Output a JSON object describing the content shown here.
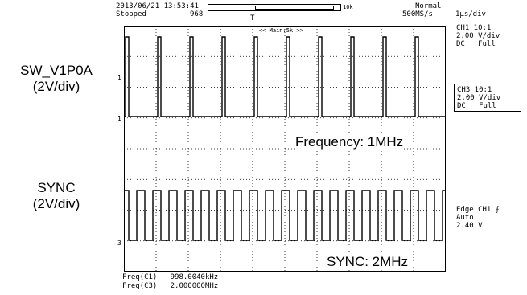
{
  "header": {
    "datetime": "2013/06/21 13:53:41",
    "status": "Stopped",
    "count": "968",
    "zoom_box": "10k",
    "mode": "Normal",
    "sample_rate": "500MS/s",
    "timebase": "1μs/div"
  },
  "plot": {
    "main_marker": "<< Main:5k >>",
    "freq_annotation": "Frequency: 1MHz",
    "sync_annotation": "SYNC: 2MHz",
    "trigger_marker": "T",
    "ch1_marker": "1",
    "ch3_marker": "3"
  },
  "left_labels": {
    "sw_name": "SW_V1P0A",
    "sw_scale": "(2V/div)",
    "sync_name": "SYNC",
    "sync_scale": "(2V/div)"
  },
  "channels": {
    "ch1": {
      "line1": "CH1 10:1",
      "line2": "2.00 V/div",
      "line3": "DC   Full"
    },
    "ch3": {
      "line1": "CH3 10:1",
      "line2": "2.00 V/div",
      "line3": "DC   Full"
    }
  },
  "trigger": {
    "line1": "Edge CH1",
    "line2": "Auto",
    "line3": "2.40 V"
  },
  "measurements": {
    "freq_c1": "Freq(C1)   998.0040kHz",
    "freq_c3": "Freq(C3)   2.000000MHz"
  },
  "colors": {
    "trace": "#000000",
    "grid": "#000000",
    "background": "#ffffff"
  },
  "chart_data": {
    "type": "line",
    "series": [
      {
        "name": "SW_V1P0A",
        "period_us": 1.0,
        "amplitude_div": 3.6
      },
      {
        "name": "SYNC",
        "period_us": 0.5,
        "amplitude_div": 2.2
      }
    ],
    "xlim": [
      0,
      10
    ],
    "grid": true
  }
}
